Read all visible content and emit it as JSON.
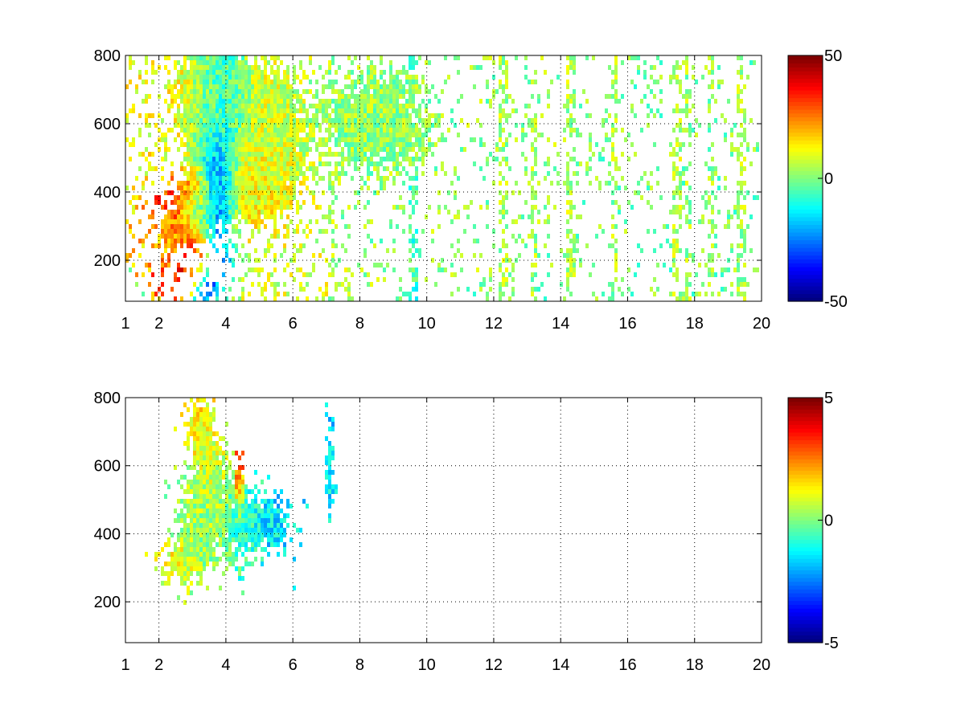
{
  "chart_data": [
    {
      "type": "heatmap",
      "title": "",
      "xlabel": "",
      "ylabel": "",
      "xlim": [
        1,
        20
      ],
      "ylim": [
        80,
        800
      ],
      "xticks": [
        1,
        2,
        4,
        6,
        8,
        10,
        12,
        14,
        16,
        18,
        20
      ],
      "yticks": [
        200,
        400,
        600,
        800
      ],
      "grid": true,
      "colormap": "jet",
      "colorbar": {
        "min": -50,
        "max": 50,
        "ticks": [
          -50,
          0,
          50
        ]
      },
      "clusters": [
        {
          "x": 2.9,
          "y": 330,
          "value": 38,
          "sx": 0.35,
          "sy": 55
        },
        {
          "x": 3.2,
          "y": 400,
          "value": 30,
          "sx": 0.25,
          "sy": 60
        },
        {
          "x": 3.7,
          "y": 440,
          "value": -42,
          "sx": 0.35,
          "sy": 90
        },
        {
          "x": 3.1,
          "y": 340,
          "value": -35,
          "sx": 0.25,
          "sy": 35
        },
        {
          "x": 3.3,
          "y": 650,
          "value": 12,
          "sx": 0.6,
          "sy": 120
        },
        {
          "x": 3.8,
          "y": 650,
          "value": -18,
          "sx": 0.45,
          "sy": 130
        },
        {
          "x": 2.4,
          "y": 280,
          "value": 18,
          "sx": 0.3,
          "sy": 30
        },
        {
          "x": 4.8,
          "y": 420,
          "value": 14,
          "sx": 0.7,
          "sy": 70
        },
        {
          "x": 5.2,
          "y": 600,
          "value": 8,
          "sx": 0.8,
          "sy": 150
        },
        {
          "x": 8.5,
          "y": 600,
          "value": 2,
          "sx": 1.2,
          "sy": 100
        }
      ],
      "sparse_columns": [
        {
          "x": 7.2,
          "value": 4
        },
        {
          "x": 9.6,
          "value": -6
        },
        {
          "x": 12.3,
          "value": 4
        },
        {
          "x": 13.2,
          "value": 3
        },
        {
          "x": 14.3,
          "value": 4
        },
        {
          "x": 15.6,
          "value": 3
        },
        {
          "x": 17.5,
          "value": 5
        },
        {
          "x": 17.8,
          "value": 3
        },
        {
          "x": 18.5,
          "value": 2
        },
        {
          "x": 19.4,
          "value": 3
        }
      ]
    },
    {
      "type": "heatmap",
      "title": "",
      "xlabel": "",
      "ylabel": "",
      "xlim": [
        1,
        20
      ],
      "ylim": [
        80,
        800
      ],
      "xticks": [
        1,
        2,
        4,
        6,
        8,
        10,
        12,
        14,
        16,
        18,
        20
      ],
      "yticks": [
        200,
        400,
        600,
        800
      ],
      "grid": true,
      "colormap": "jet",
      "colorbar": {
        "min": -5,
        "max": 5,
        "ticks": [
          -5,
          0,
          5
        ]
      },
      "clusters": [
        {
          "x": 2.6,
          "y": 320,
          "value": 1.2,
          "sx": 0.3,
          "sy": 40
        },
        {
          "x": 3.3,
          "y": 420,
          "value": 0.2,
          "sx": 0.5,
          "sy": 90
        },
        {
          "x": 3.5,
          "y": 580,
          "value": 0.8,
          "sx": 0.35,
          "sy": 90
        },
        {
          "x": 3.2,
          "y": 720,
          "value": 1.5,
          "sx": 0.25,
          "sy": 50
        },
        {
          "x": 4.5,
          "y": 430,
          "value": -0.8,
          "sx": 0.35,
          "sy": 70
        },
        {
          "x": 5.4,
          "y": 430,
          "value": -1.5,
          "sx": 0.4,
          "sy": 50
        },
        {
          "x": 7.1,
          "y": 600,
          "value": -1.5,
          "sx": 0.08,
          "sy": 80
        },
        {
          "x": 4.4,
          "y": 560,
          "value": 3.5,
          "sx": 0.07,
          "sy": 60
        }
      ],
      "sparse_columns": []
    }
  ]
}
